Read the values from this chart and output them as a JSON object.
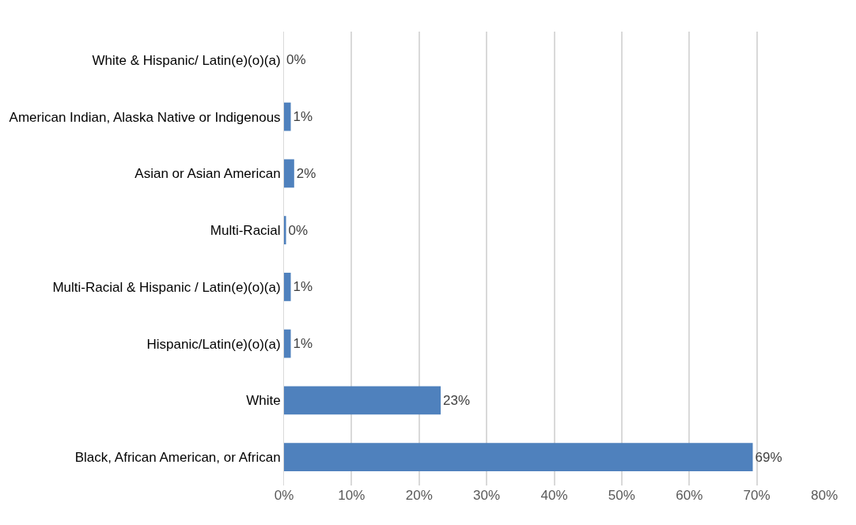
{
  "chart_data": {
    "type": "bar",
    "orientation": "horizontal",
    "categories": [
      "White & Hispanic/ Latin(e)(o)(a)",
      "American Indian, Alaska Native or Indigenous",
      "Asian or Asian American",
      "Multi-Racial",
      "Multi-Racial & Hispanic / Latin(e)(o)(a)",
      "Hispanic/Latin(e)(o)(a)",
      "White",
      "Black, African American, or African"
    ],
    "values": [
      0,
      1.0,
      1.5,
      0.3,
      1.0,
      1.0,
      23.2,
      69.4
    ],
    "value_labels": [
      "0%",
      "1%",
      "2%",
      "0%",
      "1%",
      "1%",
      "23%",
      "69%"
    ],
    "color": "#4f81bd",
    "xlim": [
      0,
      80
    ],
    "xticks": [
      {
        "value": 0,
        "label": "0%"
      },
      {
        "value": 10,
        "label": "10%"
      },
      {
        "value": 20,
        "label": "20%"
      },
      {
        "value": 30,
        "label": "30%"
      },
      {
        "value": 40,
        "label": "40%"
      },
      {
        "value": 50,
        "label": "50%"
      },
      {
        "value": 60,
        "label": "60%"
      },
      {
        "value": 70,
        "label": "70%"
      },
      {
        "value": 80,
        "label": "80%"
      }
    ],
    "grid": "x",
    "legend": false
  }
}
